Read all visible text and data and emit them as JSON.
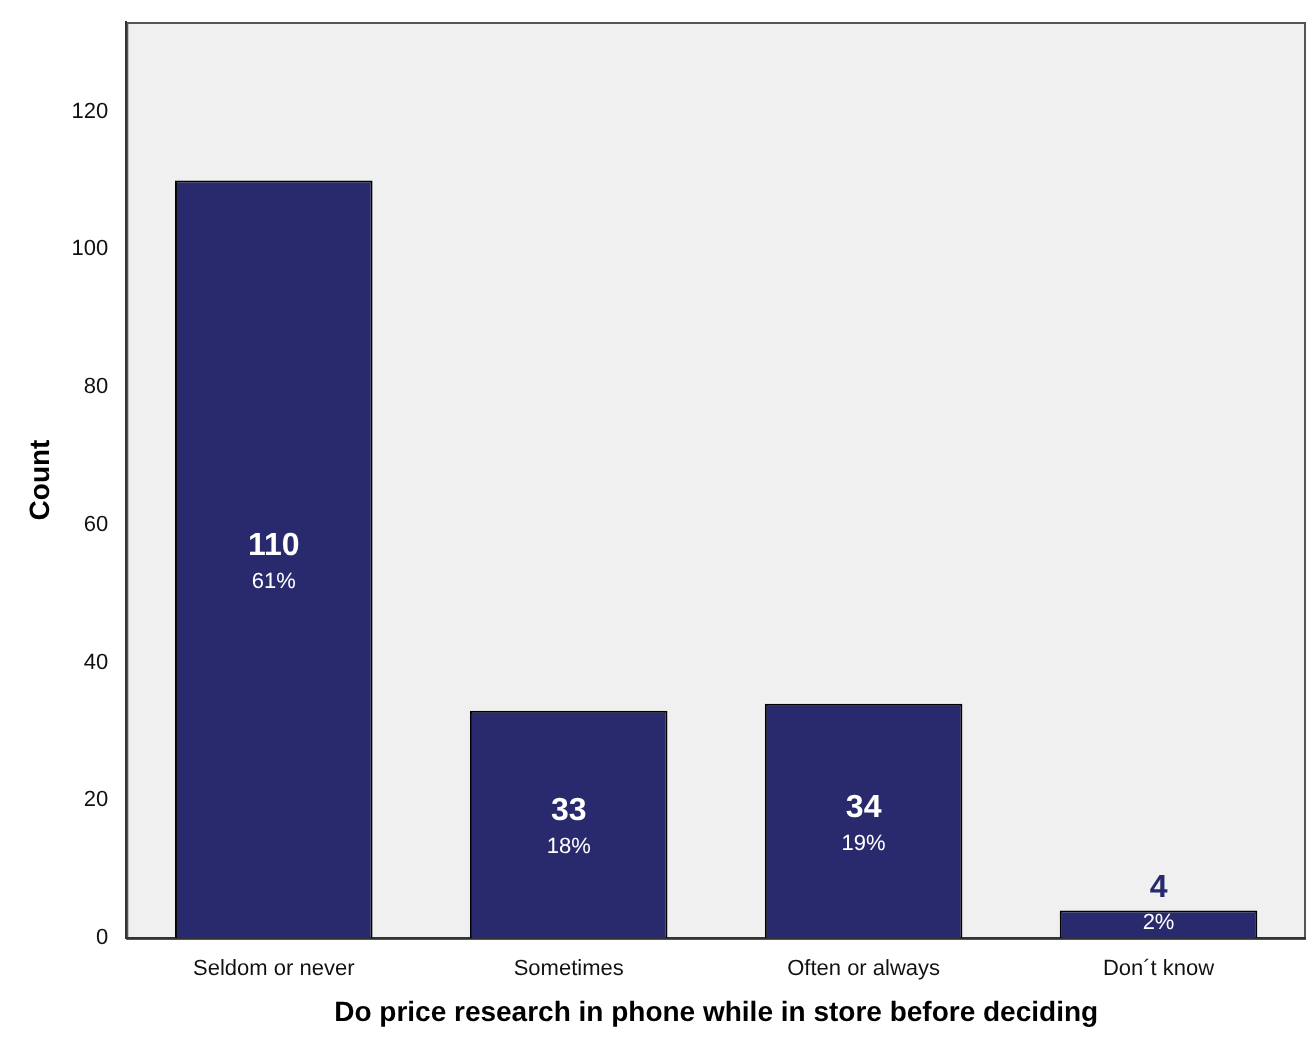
{
  "chart_data": {
    "type": "bar",
    "xlabel": "Do price research in phone while in store before deciding",
    "ylabel": "Count",
    "categories": [
      "Seldom or never",
      "Sometimes",
      "Often or always",
      "Don´t know"
    ],
    "values": [
      110,
      33,
      34,
      4
    ],
    "color": "#29296e",
    "value_labels": [
      "110\n61%",
      "33\n18%",
      "34\n19%",
      "4\n2%"
    ],
    "ylim": [
      0,
      133
    ],
    "yticks": [
      0,
      20,
      40,
      60,
      80,
      100,
      120
    ],
    "grid": false,
    "legend": false
  }
}
